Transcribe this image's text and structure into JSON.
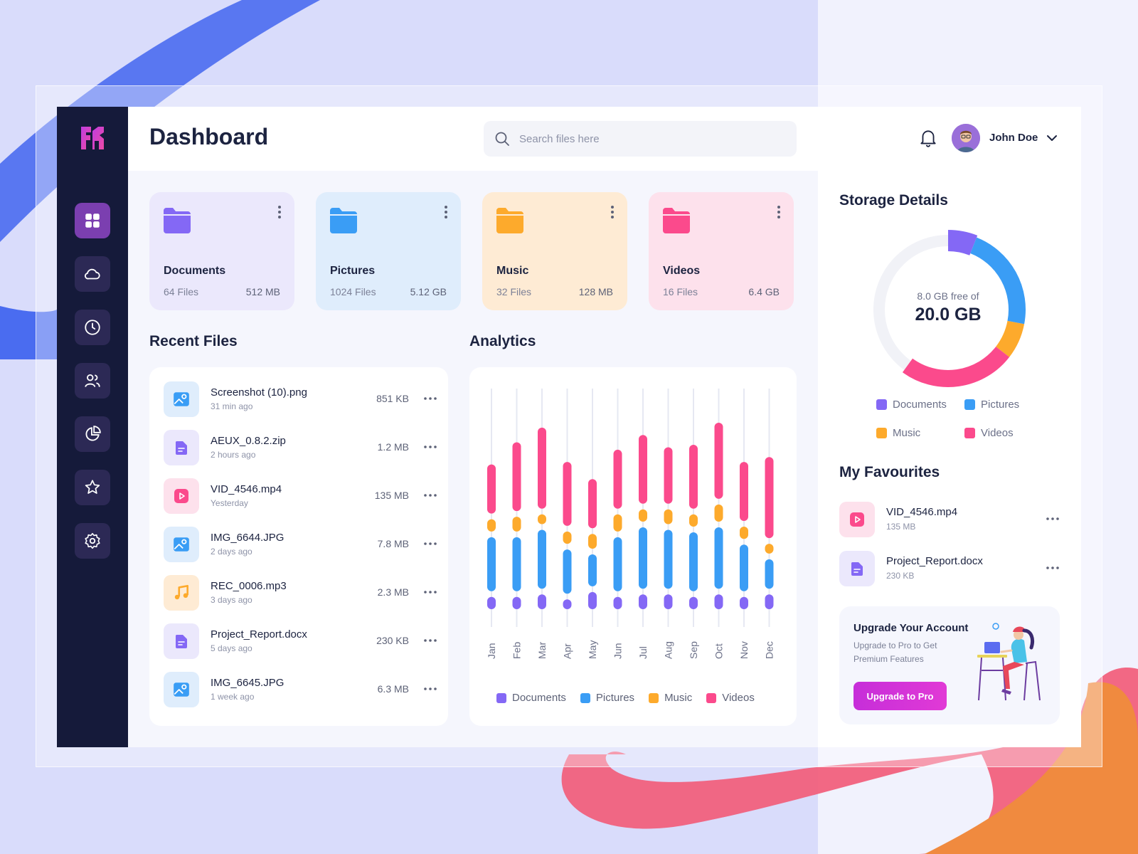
{
  "colors": {
    "documents": "#8468f5",
    "pictures": "#3a9df5",
    "music": "#fdaa2c",
    "videos": "#fb4a8c",
    "sidebar": "#151a3a",
    "accent": "#c62ed9"
  },
  "header": {
    "title": "Dashboard",
    "search_placeholder": "Search files here",
    "user_name": "John Doe"
  },
  "sidebar": {
    "items": [
      {
        "icon": "grid-icon",
        "active": true
      },
      {
        "icon": "cloud-icon"
      },
      {
        "icon": "clock-icon"
      },
      {
        "icon": "users-icon"
      },
      {
        "icon": "pie-chart-icon"
      },
      {
        "icon": "star-icon"
      },
      {
        "icon": "gear-icon"
      }
    ]
  },
  "folders": [
    {
      "name": "Documents",
      "files": "64 Files",
      "size": "512 MB"
    },
    {
      "name": "Pictures",
      "files": "1024 Files",
      "size": "5.12 GB"
    },
    {
      "name": "Music",
      "files": "32 Files",
      "size": "128 MB"
    },
    {
      "name": "Videos",
      "files": "16 Files",
      "size": "6.4 GB"
    }
  ],
  "recent": {
    "title": "Recent Files",
    "files": [
      {
        "name": "Screenshot (10).png",
        "time": "31 min ago",
        "size": "851 KB",
        "type": "image"
      },
      {
        "name": "AEUX_0.8.2.zip",
        "time": "2 hours ago",
        "size": "1.2 MB",
        "type": "document"
      },
      {
        "name": "VID_4546.mp4",
        "time": "Yesterday",
        "size": "135 MB",
        "type": "video"
      },
      {
        "name": "IMG_6644.JPG",
        "time": "2 days ago",
        "size": "7.8 MB",
        "type": "image"
      },
      {
        "name": "REC_0006.mp3",
        "time": "3 days ago",
        "size": "2.3 MB",
        "type": "music"
      },
      {
        "name": "Project_Report.docx",
        "time": "5 days ago",
        "size": "230 KB",
        "type": "document"
      },
      {
        "name": "IMG_6645.JPG",
        "time": "1 week ago",
        "size": "6.3 MB",
        "type": "image"
      }
    ]
  },
  "analytics": {
    "title": "Analytics",
    "legend": [
      "Documents",
      "Pictures",
      "Music",
      "Videos"
    ]
  },
  "chart_data": {
    "type": "bar",
    "title": "Analytics",
    "categories": [
      "Jan",
      "Feb",
      "Mar",
      "Apr",
      "May",
      "Jun",
      "Jul",
      "Aug",
      "Sep",
      "Oct",
      "Nov",
      "Dec"
    ],
    "series": [
      {
        "name": "Documents",
        "values": [
          5,
          5,
          6,
          4,
          7,
          5,
          6,
          6,
          5,
          6,
          5,
          6
        ]
      },
      {
        "name": "Pictures",
        "values": [
          22,
          22,
          24,
          18,
          13,
          22,
          25,
          24,
          24,
          25,
          19,
          12
        ]
      },
      {
        "name": "Music",
        "values": [
          5,
          6,
          4,
          5,
          6,
          7,
          5,
          6,
          5,
          7,
          5,
          4
        ]
      },
      {
        "name": "Videos",
        "values": [
          20,
          28,
          33,
          26,
          20,
          24,
          28,
          23,
          26,
          31,
          24,
          33
        ]
      }
    ],
    "ylim": [
      0,
      100
    ],
    "legend_position": "bottom"
  },
  "storage": {
    "title": "Storage Details",
    "free_text": "8.0 GB free of",
    "total": "20.0 GB",
    "segments": [
      {
        "name": "Documents",
        "value": 1.2
      },
      {
        "name": "Pictures",
        "value": 4.4
      },
      {
        "name": "Music",
        "value": 1.5
      },
      {
        "name": "Videos",
        "value": 4.9
      }
    ],
    "free_value": 8.0,
    "legend": [
      "Documents",
      "Pictures",
      "Music",
      "Videos"
    ]
  },
  "favourites": {
    "title": "My Favourites",
    "items": [
      {
        "name": "VID_4546.mp4",
        "size": "135 MB",
        "type": "video"
      },
      {
        "name": "Project_Report.docx",
        "size": "230 KB",
        "type": "document"
      }
    ]
  },
  "upgrade": {
    "title": "Upgrade Your Account",
    "description": "Upgrade to Pro to Get Premium Features",
    "button": "Upgrade to Pro"
  }
}
